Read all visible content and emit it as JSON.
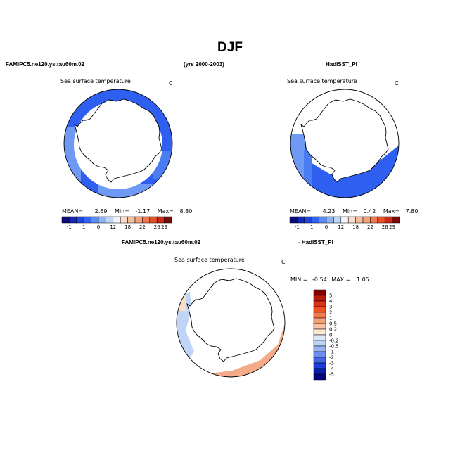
{
  "header": {
    "title": "DJF",
    "left_case": "FAMIPC5.ne120.ys.tau60m.02",
    "years": "(yrs 2000-2003)",
    "right_case": "HadISST_PI",
    "diff_left": "FAMIPC5.ne120.ys.tau60m.02",
    "diff_right": "- HadISST_PI"
  },
  "chart_data": [
    {
      "type": "map",
      "title": "Sea surface temperature",
      "units": "C",
      "stats": {
        "mean_label": "MEAN=",
        "mean": "2.69",
        "min_label": "Min=",
        "min": "-1.17",
        "max_label": "Max=",
        "max": "8.80"
      }
    },
    {
      "type": "map",
      "title": "Sea surface temperature",
      "units": "C",
      "stats": {
        "mean_label": "MEAN=",
        "mean": "4.23",
        "min_label": "Min=",
        "min": "0.42",
        "max_label": "Max=",
        "max": "7.80"
      }
    },
    {
      "type": "map",
      "title": "Sea surface temperature",
      "units": "C",
      "stats": {
        "min_label": "MIN =",
        "min": "-0.54",
        "max_label": "MAX =",
        "max": "1.05"
      }
    }
  ],
  "colorbar_abs": {
    "colors": [
      "#0a0a78",
      "#1428b4",
      "#1e46dc",
      "#3264f0",
      "#5a8cf5",
      "#8cb4f5",
      "#bed7f5",
      "#f0f5ff",
      "#fadcc8",
      "#f5be9b",
      "#f5a078",
      "#f07850",
      "#e65028",
      "#c82814",
      "#780a0a"
    ],
    "labels": [
      "-1",
      "1",
      "6",
      "12",
      "18",
      "22",
      "26",
      "29"
    ]
  },
  "colorbar_diff": {
    "colors": [
      "#800000",
      "#b41e0a",
      "#dc3214",
      "#f05028",
      "#f5784b",
      "#f5a078",
      "#fac3a0",
      "#fde6d2",
      "#dce8f8",
      "#bed2f5",
      "#96b4f0",
      "#6e8ceb",
      "#4664e6",
      "#1e3cd7",
      "#0a1eaa",
      "#000a7d"
    ],
    "labels": [
      "5",
      "4",
      "3",
      "2",
      "1",
      "0.5",
      "0.2",
      "0",
      "-0.2",
      "-0.5",
      "-1",
      "-2",
      "-3",
      "-4",
      "-5"
    ]
  },
  "colors": {
    "ocean_main": "#2e5ff0",
    "ocean_light": "#6e9af5",
    "diff_warm": "#f5ab88",
    "diff_cool": "#c0d4f5"
  }
}
